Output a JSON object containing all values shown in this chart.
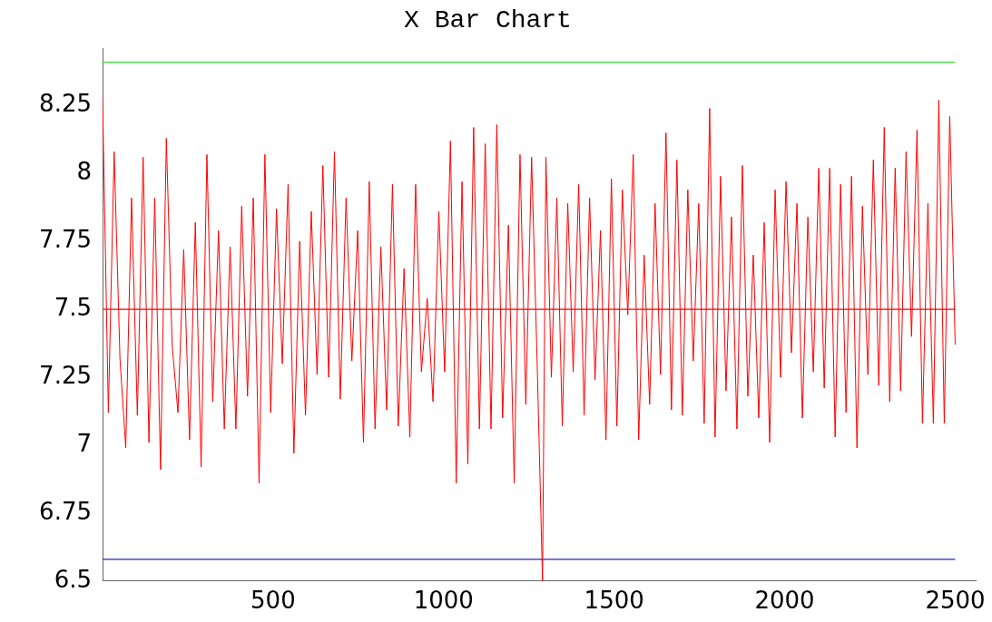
{
  "chart_data": {
    "type": "line",
    "title": "X Bar Chart",
    "x": [
      0,
      17,
      34,
      51,
      68,
      85,
      102,
      119,
      136,
      153,
      170,
      187,
      204,
      221,
      238,
      255,
      272,
      289,
      306,
      323,
      340,
      357,
      374,
      391,
      408,
      425,
      442,
      459,
      476,
      493,
      510,
      527,
      544,
      561,
      578,
      595,
      612,
      629,
      646,
      663,
      680,
      697,
      714,
      731,
      748,
      765,
      782,
      799,
      816,
      833,
      850,
      867,
      884,
      901,
      918,
      935,
      952,
      969,
      986,
      1003,
      1020,
      1037,
      1054,
      1071,
      1088,
      1105,
      1122,
      1139,
      1156,
      1173,
      1190,
      1207,
      1224,
      1241,
      1258,
      1275,
      1290,
      1300,
      1316,
      1332,
      1348,
      1364,
      1380,
      1396,
      1412,
      1428,
      1444,
      1460,
      1476,
      1492,
      1508,
      1524,
      1540,
      1556,
      1572,
      1588,
      1604,
      1620,
      1636,
      1652,
      1668,
      1684,
      1700,
      1716,
      1732,
      1748,
      1764,
      1780,
      1796,
      1812,
      1828,
      1844,
      1860,
      1876,
      1892,
      1908,
      1924,
      1940,
      1956,
      1972,
      1988,
      2004,
      2020,
      2036,
      2052,
      2068,
      2084,
      2100,
      2116,
      2132,
      2148,
      2164,
      2180,
      2196,
      2212,
      2228,
      2244,
      2260,
      2276,
      2292,
      2308,
      2324,
      2340,
      2356,
      2372,
      2388,
      2404,
      2420,
      2436,
      2452,
      2468,
      2484,
      2500
    ],
    "series": [
      {
        "color": "#ff0000",
        "values": [
          8.28,
          7.12,
          8.08,
          7.32,
          6.99,
          7.91,
          7.11,
          8.06,
          7.01,
          7.91,
          6.91,
          8.13,
          7.37,
          7.12,
          7.72,
          7.02,
          7.82,
          6.92,
          8.07,
          7.16,
          7.79,
          7.06,
          7.73,
          7.06,
          7.88,
          7.18,
          7.91,
          6.86,
          8.07,
          7.12,
          7.87,
          7.3,
          7.96,
          6.97,
          7.75,
          7.11,
          7.86,
          7.26,
          8.03,
          7.25,
          8.08,
          7.17,
          7.91,
          7.31,
          7.79,
          7.01,
          7.97,
          7.06,
          7.73,
          7.13,
          7.96,
          7.07,
          7.65,
          7.03,
          7.96,
          7.27,
          7.54,
          7.16,
          7.86,
          7.27,
          8.12,
          6.86,
          7.97,
          6.93,
          8.17,
          7.06,
          8.11,
          7.06,
          8.18,
          7.1,
          7.81,
          6.86,
          8.07,
          7.15,
          8.06,
          7.27,
          6.5,
          8.06,
          7.25,
          7.91,
          7.07,
          7.89,
          7.27,
          7.96,
          7.11,
          7.91,
          7.24,
          7.79,
          7.02,
          7.98,
          7.07,
          7.94,
          7.48,
          8.07,
          7.02,
          7.7,
          7.15,
          7.89,
          7.26,
          8.15,
          7.13,
          8.05,
          7.11,
          7.94,
          7.31,
          7.89,
          7.08,
          8.24,
          7.03,
          7.99,
          7.2,
          7.84,
          7.06,
          8.03,
          7.18,
          7.7,
          7.1,
          7.82,
          7.01,
          7.94,
          7.25,
          7.97,
          7.34,
          7.89,
          7.1,
          7.84,
          7.27,
          8.02,
          7.21,
          8.02,
          7.03,
          7.96,
          7.12,
          7.99,
          6.99,
          7.88,
          7.26,
          8.05,
          7.22,
          8.17,
          7.16,
          8.02,
          7.2,
          8.08,
          7.4,
          8.16,
          7.08,
          7.89,
          7.08,
          8.27,
          7.08,
          8.21,
          7.37
        ]
      }
    ],
    "xlim": [
      0,
      2560
    ],
    "xticks": [
      500,
      1000,
      1500,
      2000,
      2500
    ],
    "ylim": [
      6.5,
      8.46
    ],
    "yticks": [
      6.5,
      6.75,
      7,
      7.25,
      7.5,
      7.75,
      8,
      8.25
    ],
    "ref_lines": [
      {
        "axis": "y",
        "value": 8.41,
        "color": "#33dd33"
      },
      {
        "axis": "y",
        "value": 7.5,
        "color": "#ff0000"
      },
      {
        "axis": "y",
        "value": 6.58,
        "color": "#2222bb"
      }
    ],
    "grid": false,
    "legend": false,
    "marker": "none",
    "line_style": "solid"
  }
}
